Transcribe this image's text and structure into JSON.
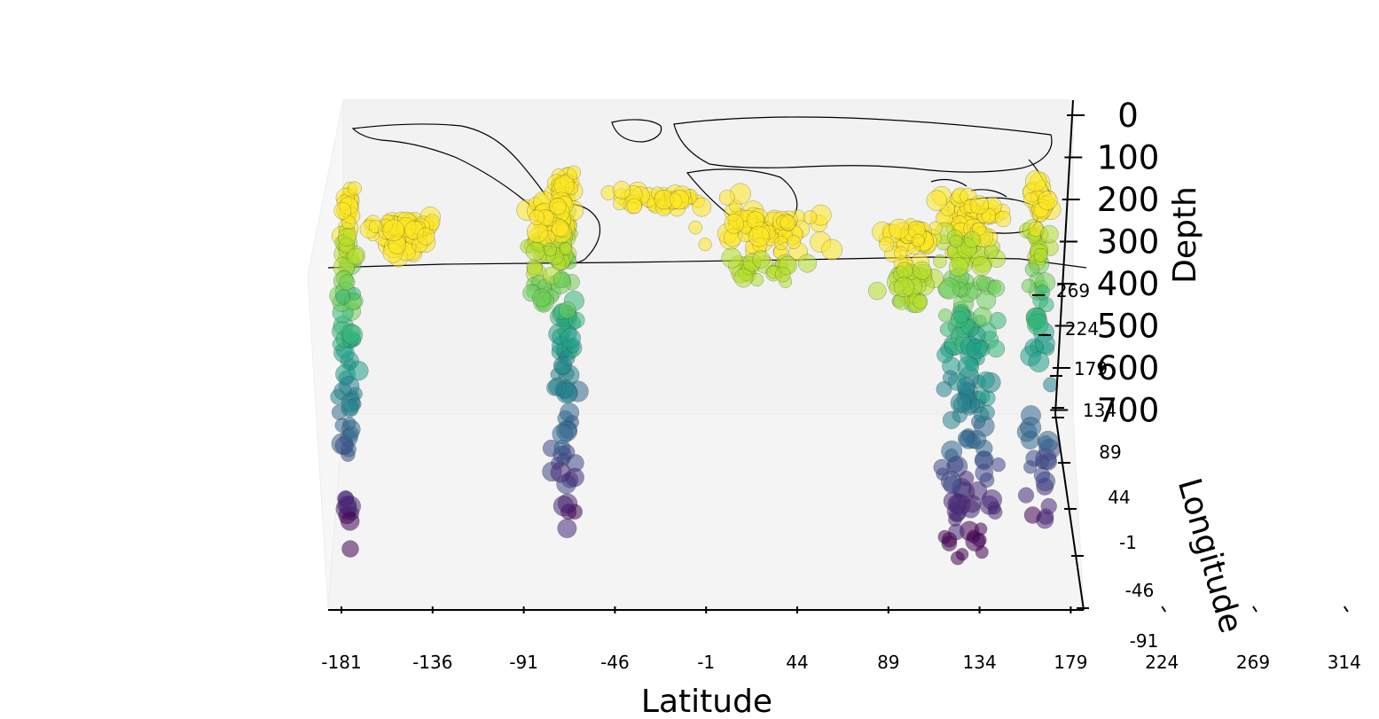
{
  "chart_data": {
    "type": "scatter",
    "projection": "3d",
    "title": "",
    "xlabel": "Latitude",
    "ylabel": "Longitude",
    "zlabel": "Depth",
    "x_ticks": [
      "-181",
      "-136",
      "-91",
      "-46",
      "-1",
      "44",
      "89",
      "134",
      "179",
      "224",
      "269",
      "314"
    ],
    "y_ticks": [
      "-91",
      "-46",
      "-1",
      "44",
      "89",
      "134",
      "179",
      "224",
      "269"
    ],
    "z_ticks": [
      "0",
      "100",
      "200",
      "300",
      "400",
      "500",
      "600",
      "700"
    ],
    "xlim": [
      -181,
      314
    ],
    "ylim": [
      -91,
      269
    ],
    "zlim": [
      0,
      700
    ],
    "colormap": "viridis",
    "color_by": "Depth",
    "grid": false,
    "basemap": "world coastlines and borders",
    "clusters": [
      {
        "x_center": -178,
        "x_spread": 6,
        "y_center": 75,
        "y_spread": 60,
        "depth_min": 0,
        "depth_max": 680,
        "count": 90
      },
      {
        "x_center": -70,
        "x_spread": 8,
        "y_center": 40,
        "y_spread": 80,
        "depth_min": 0,
        "depth_max": 650,
        "count": 110
      },
      {
        "x_center": -150,
        "x_spread": 25,
        "y_center": 150,
        "y_spread": 30,
        "depth_min": 0,
        "depth_max": 60,
        "count": 60
      },
      {
        "x_center": -80,
        "x_spread": 15,
        "y_center": 95,
        "y_spread": 40,
        "depth_min": 0,
        "depth_max": 200,
        "count": 70
      },
      {
        "x_center": 130,
        "x_spread": 20,
        "y_center": 95,
        "y_spread": 60,
        "depth_min": 0,
        "depth_max": 680,
        "count": 200
      },
      {
        "x_center": 165,
        "x_spread": 10,
        "y_center": 60,
        "y_spread": 70,
        "depth_min": 0,
        "depth_max": 650,
        "count": 80
      },
      {
        "x_center": 30,
        "x_spread": 40,
        "y_center": 140,
        "y_spread": 30,
        "depth_min": 0,
        "depth_max": 120,
        "count": 90
      },
      {
        "x_center": 100,
        "x_spread": 20,
        "y_center": 170,
        "y_spread": 25,
        "depth_min": 0,
        "depth_max": 150,
        "count": 70
      },
      {
        "x_center": -20,
        "x_spread": 50,
        "y_center": 70,
        "y_spread": 15,
        "depth_min": 0,
        "depth_max": 30,
        "count": 40
      }
    ]
  }
}
